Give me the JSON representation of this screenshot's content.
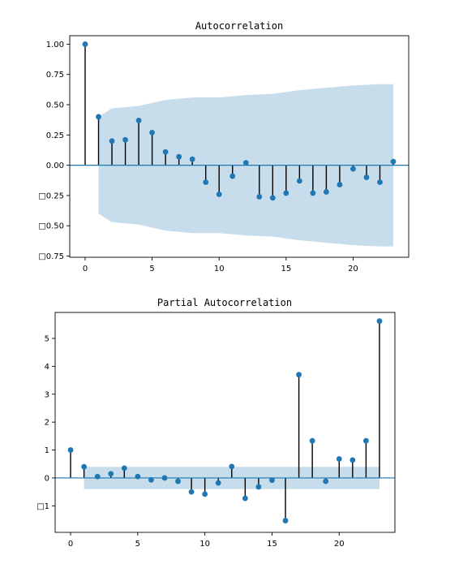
{
  "chart_data": [
    {
      "type": "stem",
      "title": "Autocorrelation",
      "xlabel": "",
      "ylabel": "",
      "xlim": [
        -1.15,
        24.15
      ],
      "ylim": [
        -0.76,
        1.07
      ],
      "xticks": [
        0,
        5,
        10,
        15,
        20
      ],
      "xtick_labels": [
        "0",
        "5",
        "10",
        "15",
        "20"
      ],
      "yticks": [
        -0.75,
        -0.5,
        -0.25,
        0.0,
        0.25,
        0.5,
        0.75,
        1.0
      ],
      "ytick_labels": [
        "□0.75",
        "□0.50",
        "□0.25",
        "0.00",
        "0.25",
        "0.50",
        "0.75",
        "1.00"
      ],
      "lags": [
        0,
        1,
        2,
        3,
        4,
        5,
        6,
        7,
        8,
        9,
        10,
        11,
        12,
        13,
        14,
        15,
        16,
        17,
        18,
        19,
        20,
        21,
        22,
        23
      ],
      "values": [
        1.0,
        0.4,
        0.2,
        0.21,
        0.37,
        0.27,
        0.11,
        0.07,
        0.05,
        -0.14,
        -0.24,
        -0.09,
        0.02,
        -0.26,
        -0.27,
        -0.23,
        -0.13,
        -0.23,
        -0.22,
        -0.16,
        -0.03,
        -0.1,
        -0.14,
        0.03
      ],
      "confidence_band": {
        "lags": [
          1,
          2,
          4,
          6,
          8,
          10,
          12,
          14,
          16,
          18,
          20,
          22,
          23
        ],
        "upper": [
          0.4,
          0.47,
          0.49,
          0.54,
          0.56,
          0.56,
          0.58,
          0.59,
          0.62,
          0.64,
          0.66,
          0.67,
          0.67
        ]
      },
      "grid": false,
      "colors": {
        "marker": "#1f77b4",
        "stem": "#000000",
        "band": "#1f77b4"
      }
    },
    {
      "type": "stem",
      "title": "Partial Autocorrelation",
      "xlabel": "",
      "ylabel": "",
      "xlim": [
        -1.15,
        24.15
      ],
      "ylim": [
        -1.95,
        5.93
      ],
      "xticks": [
        0,
        5,
        10,
        15,
        20
      ],
      "xtick_labels": [
        "0",
        "5",
        "10",
        "15",
        "20"
      ],
      "yticks": [
        -1,
        0,
        1,
        2,
        3,
        4,
        5
      ],
      "ytick_labels": [
        "□1",
        "0",
        "1",
        "2",
        "3",
        "4",
        "5"
      ],
      "lags": [
        0,
        1,
        2,
        3,
        4,
        5,
        6,
        7,
        8,
        9,
        10,
        11,
        12,
        13,
        14,
        15,
        16,
        17,
        18,
        19,
        20,
        21,
        22,
        23
      ],
      "values": [
        1.0,
        0.4,
        0.05,
        0.15,
        0.35,
        0.05,
        -0.07,
        0.0,
        -0.12,
        -0.5,
        -0.58,
        -0.18,
        0.41,
        -0.73,
        -0.32,
        -0.08,
        -1.53,
        3.7,
        1.33,
        -0.12,
        0.68,
        0.64,
        1.33,
        5.62
      ],
      "confidence_band": {
        "lags": [
          1,
          23
        ],
        "upper": [
          0.4,
          0.4
        ]
      },
      "grid": false,
      "colors": {
        "marker": "#1f77b4",
        "stem": "#000000",
        "band": "#1f77b4"
      }
    }
  ]
}
